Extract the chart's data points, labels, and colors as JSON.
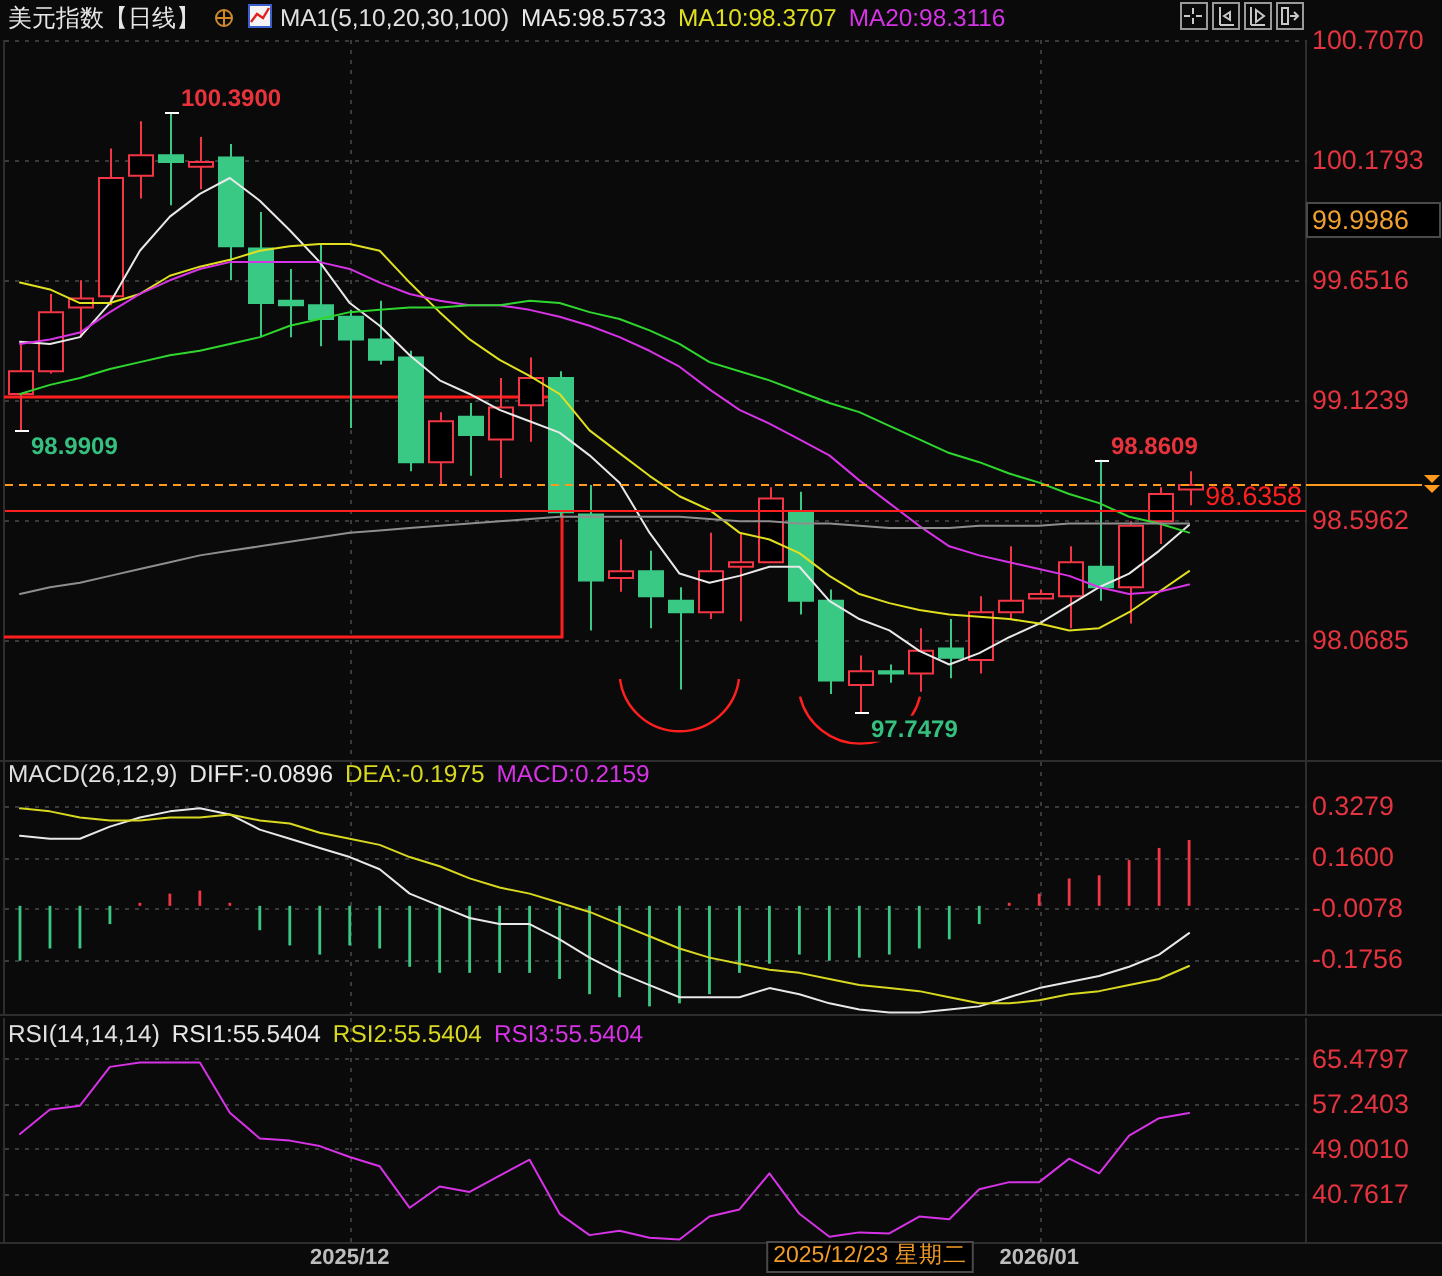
{
  "chart_data": [
    {
      "type": "candlestick",
      "title": "美元指数【日线】",
      "legend_title": "MA1(5,10,20,30,100)",
      "legend": "top",
      "tick_labels": "y",
      "grid": true,
      "categories": [
        null,
        null,
        null,
        null,
        null,
        null,
        null,
        null,
        null,
        null,
        null,
        "2025/12",
        null,
        null,
        null,
        null,
        null,
        null,
        null,
        null,
        null,
        null,
        null,
        null,
        null,
        null,
        null,
        null,
        null,
        null,
        null,
        null,
        null,
        null,
        "2026/01",
        null,
        null,
        null,
        null,
        null
      ],
      "ohlc": [
        [
          99.15,
          99.38,
          98.9909,
          99.25
        ],
        [
          99.25,
          99.59,
          99.24,
          99.51
        ],
        [
          99.53,
          99.65,
          99.4,
          99.57
        ],
        [
          99.58,
          100.23,
          99.54,
          100.1
        ],
        [
          100.11,
          100.35,
          100.01,
          100.2
        ],
        [
          100.2,
          100.39,
          99.98,
          100.17
        ],
        [
          100.15,
          100.28,
          100.05,
          100.17
        ],
        [
          100.19,
          100.25,
          99.65,
          99.8
        ],
        [
          99.79,
          99.95,
          99.4,
          99.55
        ],
        [
          99.56,
          99.7,
          99.4,
          99.54
        ],
        [
          99.54,
          99.81,
          99.36,
          99.48
        ],
        [
          99.49,
          99.52,
          99.0,
          99.39
        ],
        [
          99.39,
          99.56,
          99.28,
          99.3
        ],
        [
          99.31,
          99.34,
          98.81,
          98.85
        ],
        [
          98.85,
          99.07,
          98.75,
          99.03
        ],
        [
          99.05,
          99.11,
          98.79,
          98.97
        ],
        [
          98.95,
          99.22,
          98.78,
          99.09
        ],
        [
          99.1,
          99.31,
          98.94,
          99.22
        ],
        [
          99.22,
          99.25,
          98.61,
          98.63
        ],
        [
          98.62,
          98.75,
          98.11,
          98.33
        ],
        [
          98.34,
          98.51,
          98.28,
          98.37
        ],
        [
          98.37,
          98.46,
          98.12,
          98.26
        ],
        [
          98.24,
          98.3,
          97.85,
          98.19
        ],
        [
          98.19,
          98.54,
          98.16,
          98.37
        ],
        [
          98.39,
          98.54,
          98.15,
          98.41
        ],
        [
          98.41,
          98.74,
          98.41,
          98.69
        ],
        [
          98.63,
          98.72,
          98.18,
          98.24
        ],
        [
          98.24,
          98.29,
          97.83,
          97.89
        ],
        [
          97.87,
          98.0,
          97.7479,
          97.93
        ],
        [
          97.93,
          97.96,
          97.88,
          97.92
        ],
        [
          97.92,
          98.12,
          97.84,
          98.02
        ],
        [
          98.03,
          98.16,
          97.9,
          97.99
        ],
        [
          97.98,
          98.26,
          97.92,
          98.19
        ],
        [
          98.19,
          98.48,
          98.16,
          98.24
        ],
        [
          98.25,
          98.29,
          98.25,
          98.27
        ],
        [
          98.26,
          98.48,
          98.12,
          98.41
        ],
        [
          98.39,
          98.8609,
          98.24,
          98.3
        ],
        [
          98.3,
          98.59,
          98.14,
          98.57
        ],
        [
          98.59,
          98.74,
          98.49,
          98.71
        ],
        [
          98.73,
          98.81,
          98.66,
          98.75
        ]
      ],
      "colors": [
        "#f23645",
        "#f23645",
        "#f23645",
        "#f23645",
        "#f23645",
        "#3ac985",
        "#f23645",
        "#3ac985",
        "#3ac985",
        "#3ac985",
        "#3ac985",
        "#3ac985",
        "#3ac985",
        "#3ac985",
        "#f23645",
        "#3ac985",
        "#f23645",
        "#f23645",
        "#3ac985",
        "#3ac985",
        "#f23645",
        "#3ac985",
        "#3ac985",
        "#f23645",
        "#f23645",
        "#f23645",
        "#3ac985",
        "#3ac985",
        "#f23645",
        "#3ac985",
        "#f23645",
        "#3ac985",
        "#f23645",
        "#f23645",
        "#f23645",
        "#f23645",
        "#3ac985",
        "#f23645",
        "#f23645",
        "#f23645"
      ],
      "value_labels": [
        "98.9909",
        null,
        null,
        null,
        null,
        "100.3900",
        null,
        null,
        null,
        null,
        null,
        null,
        null,
        null,
        null,
        null,
        null,
        null,
        null,
        null,
        null,
        null,
        null,
        null,
        null,
        null,
        null,
        null,
        "97.7479",
        null,
        null,
        null,
        null,
        null,
        null,
        null,
        "98.8609",
        null,
        null,
        null
      ],
      "series": [
        {
          "name": "MA5:98.5733",
          "type": "line",
          "color": "#e8e8e8",
          "values": [
            99.38,
            99.37,
            99.4,
            99.55,
            99.78,
            99.93,
            100.03,
            100.1,
            100.0,
            99.87,
            99.73,
            99.55,
            99.45,
            99.32,
            99.21,
            99.15,
            99.08,
            99.03,
            98.98,
            98.88,
            98.76,
            98.54,
            98.36,
            98.32,
            98.35,
            98.39,
            98.39,
            98.24,
            98.16,
            98.11,
            98.02,
            97.96,
            98.01,
            98.08,
            98.14,
            98.22,
            98.3,
            98.36,
            98.46,
            98.5733
          ]
        },
        {
          "name": "MA10:98.3707",
          "type": "line",
          "color": "#e0e020",
          "values": [
            99.64,
            99.61,
            99.55,
            99.55,
            99.59,
            99.67,
            99.71,
            99.74,
            99.78,
            99.8,
            99.81,
            99.81,
            99.78,
            99.64,
            99.51,
            99.39,
            99.3,
            99.23,
            99.15,
            98.99,
            98.89,
            98.79,
            98.7,
            98.64,
            98.54,
            98.51,
            98.45,
            98.35,
            98.27,
            98.23,
            98.2,
            98.18,
            98.17,
            98.16,
            98.14,
            98.11,
            98.12,
            98.19,
            98.28,
            98.3707
          ]
        },
        {
          "name": "MA20:98.3116",
          "type": "line",
          "color": "#d633e6",
          "values": [
            99.37,
            99.39,
            99.42,
            99.51,
            99.59,
            99.65,
            99.7,
            99.73,
            99.73,
            99.73,
            99.73,
            99.7,
            99.64,
            99.59,
            99.56,
            99.54,
            99.54,
            99.52,
            99.49,
            99.45,
            99.4,
            99.34,
            99.27,
            99.17,
            99.08,
            99.02,
            98.95,
            98.88,
            98.77,
            98.67,
            98.57,
            98.48,
            98.44,
            98.41,
            98.38,
            98.35,
            98.3,
            98.27,
            98.28,
            98.3116
          ]
        },
        {
          "type": "line",
          "color": "#2ed62e",
          "values": [
            99.15,
            99.19,
            99.22,
            99.26,
            99.29,
            99.32,
            99.34,
            99.37,
            99.4,
            99.45,
            99.48,
            99.51,
            99.52,
            99.53,
            99.53,
            99.54,
            99.54,
            99.56,
            99.55,
            99.51,
            99.48,
            99.43,
            99.37,
            99.29,
            99.25,
            99.21,
            99.16,
            99.11,
            99.07,
            99.01,
            98.95,
            98.89,
            98.85,
            98.8,
            98.76,
            98.71,
            98.67,
            98.61,
            98.58,
            98.54
          ]
        },
        {
          "type": "line",
          "color": "#8e8e8e",
          "values": [
            98.27,
            98.3,
            98.32,
            98.35,
            98.38,
            98.41,
            98.44,
            98.46,
            98.48,
            98.5,
            98.52,
            98.54,
            98.55,
            98.56,
            98.57,
            98.58,
            98.59,
            98.6,
            98.61,
            98.61,
            98.61,
            98.61,
            98.61,
            98.6,
            98.59,
            98.59,
            98.58,
            98.58,
            98.57,
            98.56,
            98.56,
            98.56,
            98.57,
            98.57,
            98.57,
            98.58,
            98.58,
            98.58,
            98.58,
            98.58
          ]
        }
      ],
      "ylim": [
        97.54,
        100.707
      ],
      "yticks": [
        {
          "value": 100.707,
          "label": "100.7070"
        },
        100.1793,
        99.6516,
        99.1239,
        98.5962,
        98.0685
      ],
      "ref_lines": [
        {
          "axis": "y",
          "value": 98.6358,
          "label": "98.6358",
          "color": "#ff1f1f"
        },
        {
          "axis": "y",
          "value": 98.75,
          "color": "#ff9a1f",
          "line_style": "dashed"
        }
      ],
      "annotations": [
        "99.9986"
      ]
    },
    {
      "type": "bar",
      "legend_title": "MACD(26,12,9)",
      "legend": "top",
      "tick_labels": "y",
      "grid": true,
      "categories": [
        null,
        null,
        null,
        null,
        null,
        null,
        null,
        null,
        null,
        null,
        null,
        "2025/12",
        null,
        null,
        null,
        null,
        null,
        null,
        null,
        null,
        null,
        null,
        null,
        null,
        null,
        null,
        null,
        null,
        null,
        null,
        null,
        null,
        null,
        null,
        "2026/01",
        null,
        null,
        null,
        null,
        null
      ],
      "series": [
        {
          "name": "DIFF:-0.0896",
          "type": "line",
          "color": "#e8e8e8",
          "values": [
            0.23,
            0.22,
            0.22,
            0.26,
            0.29,
            0.31,
            0.32,
            0.3,
            0.25,
            0.22,
            0.19,
            0.16,
            0.12,
            0.04,
            0.0,
            -0.04,
            -0.06,
            -0.06,
            -0.11,
            -0.17,
            -0.22,
            -0.26,
            -0.3,
            -0.3,
            -0.3,
            -0.27,
            -0.29,
            -0.32,
            -0.34,
            -0.35,
            -0.35,
            -0.34,
            -0.33,
            -0.3,
            -0.27,
            -0.25,
            -0.23,
            -0.2,
            -0.16,
            -0.0896
          ]
        },
        {
          "name": "DEA:-0.1975",
          "type": "line",
          "color": "#d8d820",
          "values": [
            0.32,
            0.31,
            0.29,
            0.28,
            0.28,
            0.29,
            0.29,
            0.3,
            0.28,
            0.27,
            0.24,
            0.22,
            0.2,
            0.16,
            0.13,
            0.09,
            0.06,
            0.04,
            0.01,
            -0.02,
            -0.06,
            -0.1,
            -0.14,
            -0.17,
            -0.19,
            -0.21,
            -0.22,
            -0.24,
            -0.26,
            -0.27,
            -0.28,
            -0.3,
            -0.32,
            -0.32,
            -0.31,
            -0.29,
            -0.28,
            -0.26,
            -0.24,
            -0.1975
          ]
        },
        {
          "values": [
            -0.18,
            -0.14,
            -0.14,
            -0.06,
            0.01,
            0.04,
            0.05,
            0.01,
            -0.08,
            -0.13,
            -0.16,
            -0.13,
            -0.14,
            -0.2,
            -0.22,
            -0.22,
            -0.22,
            -0.22,
            -0.24,
            -0.29,
            -0.3,
            -0.33,
            -0.32,
            -0.29,
            -0.22,
            -0.19,
            -0.16,
            -0.18,
            -0.17,
            -0.16,
            -0.14,
            -0.11,
            -0.06,
            0.01,
            0.04,
            0.09,
            0.1,
            0.15,
            0.19,
            0.2159
          ],
          "colors": [
            "#3ac985",
            "#3ac985",
            "#3ac985",
            "#3ac985",
            "#f23645",
            "#f23645",
            "#f23645",
            "#f23645",
            "#3ac985",
            "#3ac985",
            "#3ac985",
            "#3ac985",
            "#3ac985",
            "#3ac985",
            "#3ac985",
            "#3ac985",
            "#3ac985",
            "#3ac985",
            "#3ac985",
            "#3ac985",
            "#3ac985",
            "#3ac985",
            "#3ac985",
            "#3ac985",
            "#3ac985",
            "#3ac985",
            "#3ac985",
            "#3ac985",
            "#3ac985",
            "#3ac985",
            "#3ac985",
            "#3ac985",
            "#3ac985",
            "#f23645",
            "#f23645",
            "#f23645",
            "#f23645",
            "#f23645",
            "#f23645",
            "#f23645"
          ]
        }
      ],
      "ylim": [
        -0.355,
        0.472
      ],
      "yticks": [
        0.3279,
        {
          "value": 0.16,
          "label": "0.1600"
        },
        -0.0078,
        -0.1756
      ],
      "annotations": [
        "MACD:0.2159"
      ]
    },
    {
      "type": "line",
      "legend_title": "RSI(14,14,14)",
      "legend": "top",
      "grid": true,
      "categories": [
        null,
        null,
        null,
        null,
        null,
        null,
        null,
        null,
        null,
        null,
        null,
        "2025/12",
        null,
        null,
        null,
        null,
        null,
        null,
        null,
        null,
        null,
        null,
        null,
        null,
        null,
        null,
        null,
        null,
        null,
        null,
        null,
        null,
        null,
        null,
        "2026/01",
        null,
        null,
        null,
        null,
        null
      ],
      "series": [
        {
          "name": "RSI1:55.5404",
          "color": "#e8e8e8",
          "values": [
            null,
            null,
            null,
            null,
            null,
            null,
            null,
            null,
            null,
            null,
            null,
            null,
            null,
            null,
            null,
            null,
            null,
            null,
            null,
            null,
            null,
            null,
            null,
            null,
            null,
            null,
            null,
            null,
            null,
            null,
            null,
            null,
            null,
            null,
            null,
            null,
            null,
            null,
            null,
            null
          ]
        },
        {
          "name": "RSI2:55.5404",
          "color": "#d8d820",
          "values": [
            null,
            null,
            null,
            null,
            null,
            null,
            null,
            null,
            null,
            null,
            null,
            null,
            null,
            null,
            null,
            null,
            null,
            null,
            null,
            null,
            null,
            null,
            null,
            null,
            null,
            null,
            null,
            null,
            null,
            null,
            null,
            null,
            null,
            null,
            null,
            null,
            null,
            null,
            null,
            null
          ]
        },
        {
          "name": "RSI3:55.5404",
          "color": "#d633e6",
          "values": [
            51.7,
            56.2,
            56.9,
            64.0,
            64.8,
            64.8,
            64.8,
            55.6,
            50.9,
            50.5,
            49.5,
            47.5,
            45.8,
            38.2,
            42.1,
            41.1,
            44.1,
            47.0,
            37.1,
            33.2,
            34.0,
            32.7,
            32.4,
            36.6,
            37.9,
            44.5,
            37.1,
            32.9,
            33.7,
            33.5,
            36.6,
            36.1,
            41.6,
            42.9,
            42.9,
            47.2,
            44.5,
            51.4,
            54.6,
            55.5404
          ]
        }
      ],
      "ylim": [
        31.94,
        72.95
      ],
      "yticks": [
        65.4797,
        57.2403,
        {
          "value": 49.001,
          "label": "49.0010"
        },
        40.7617
      ],
      "annotations": [
        "2025/12/23 星期二"
      ]
    }
  ]
}
